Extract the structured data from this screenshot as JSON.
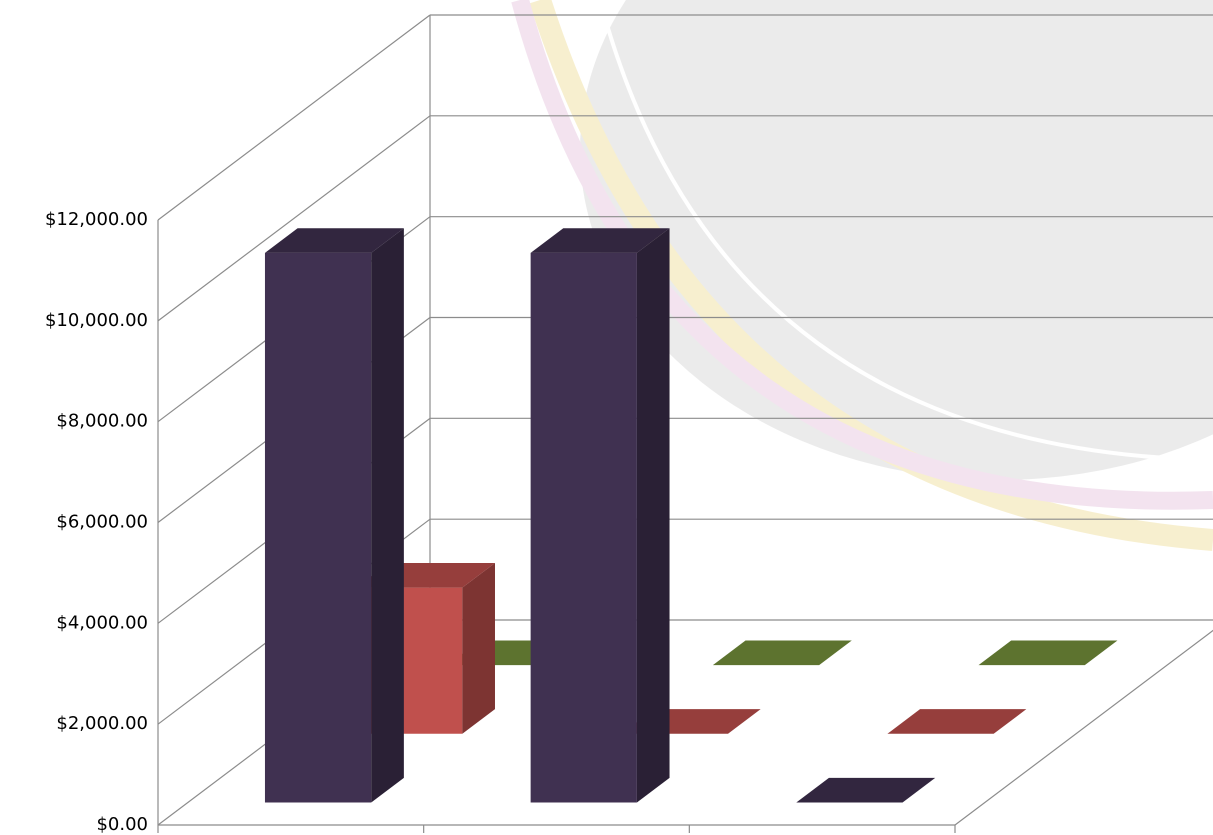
{
  "chart_data": {
    "type": "bar3d",
    "categories": [
      null,
      null,
      null
    ],
    "series": [
      {
        "name": null,
        "color": "#403151",
        "values": [
          10900,
          10900,
          0
        ]
      },
      {
        "name": null,
        "color": "#c0504d",
        "values": [
          2900,
          0,
          0
        ]
      },
      {
        "name": null,
        "color": "#77933c",
        "values": [
          0,
          0,
          0
        ]
      }
    ],
    "ylim": [
      0,
      12000
    ],
    "yticks": [
      {
        "value": 0,
        "label": "$0.00"
      },
      {
        "value": 2000,
        "label": "$2,000.00"
      },
      {
        "value": 4000,
        "label": "$4,000.00"
      },
      {
        "value": 6000,
        "label": "$6,000.00"
      },
      {
        "value": 8000,
        "label": "$8,000.00"
      },
      {
        "value": 10000,
        "label": "$10,000.00"
      },
      {
        "value": 12000,
        "label": "$12,000.00"
      }
    ],
    "grid": true
  }
}
